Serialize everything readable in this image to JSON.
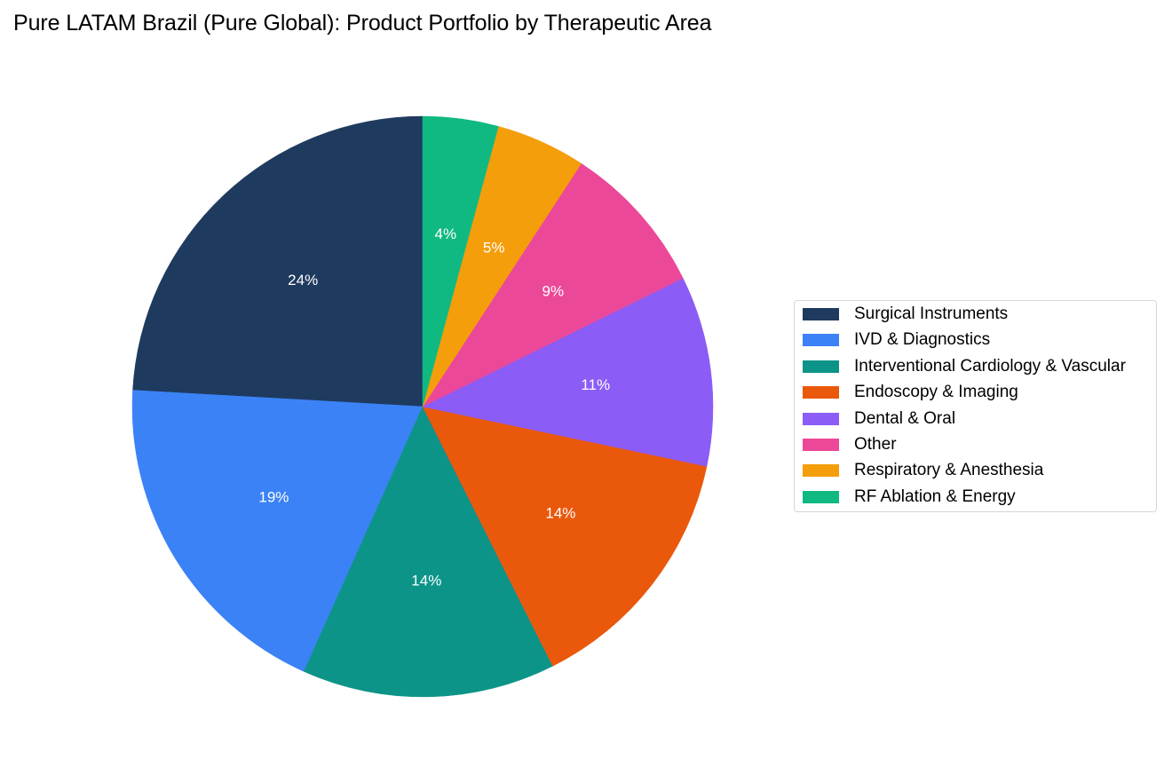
{
  "chart_data": {
    "type": "pie",
    "title": "Pure LATAM Brazil (Pure Global): Product Portfolio by Therapeutic Area",
    "start_angle": 90,
    "direction": "counterclockwise",
    "categories": [
      "Surgical Instruments",
      "IVD & Diagnostics",
      "Interventional Cardiology & Vascular",
      "Endoscopy & Imaging",
      "Dental & Oral",
      "Other",
      "Respiratory & Anesthesia",
      "RF Ablation & Energy"
    ],
    "values": [
      24.1,
      19.2,
      14.1,
      14.3,
      10.6,
      8.5,
      5.0,
      4.2
    ],
    "labels": [
      "24%",
      "19%",
      "14%",
      "14%",
      "11%",
      "9%",
      "5%",
      "4%"
    ],
    "colors": [
      "#1f3a5f",
      "#3b82f6",
      "#0d9488",
      "#ea580c",
      "#8b5cf6",
      "#ec4899",
      "#f59e0b",
      "#10b981"
    ],
    "legend_position": "center right"
  },
  "title": "Pure LATAM Brazil (Pure Global): Product Portfolio by Therapeutic Area",
  "legend": {
    "items": [
      {
        "label": "Surgical Instruments",
        "color": "#1f3a5f"
      },
      {
        "label": "IVD & Diagnostics",
        "color": "#3b82f6"
      },
      {
        "label": "Interventional Cardiology & Vascular",
        "color": "#0d9488"
      },
      {
        "label": "Endoscopy & Imaging",
        "color": "#ea580c"
      },
      {
        "label": "Dental & Oral",
        "color": "#8b5cf6"
      },
      {
        "label": "Other",
        "color": "#ec4899"
      },
      {
        "label": "Respiratory & Anesthesia",
        "color": "#f59e0b"
      },
      {
        "label": "RF Ablation & Energy",
        "color": "#10b981"
      }
    ]
  }
}
